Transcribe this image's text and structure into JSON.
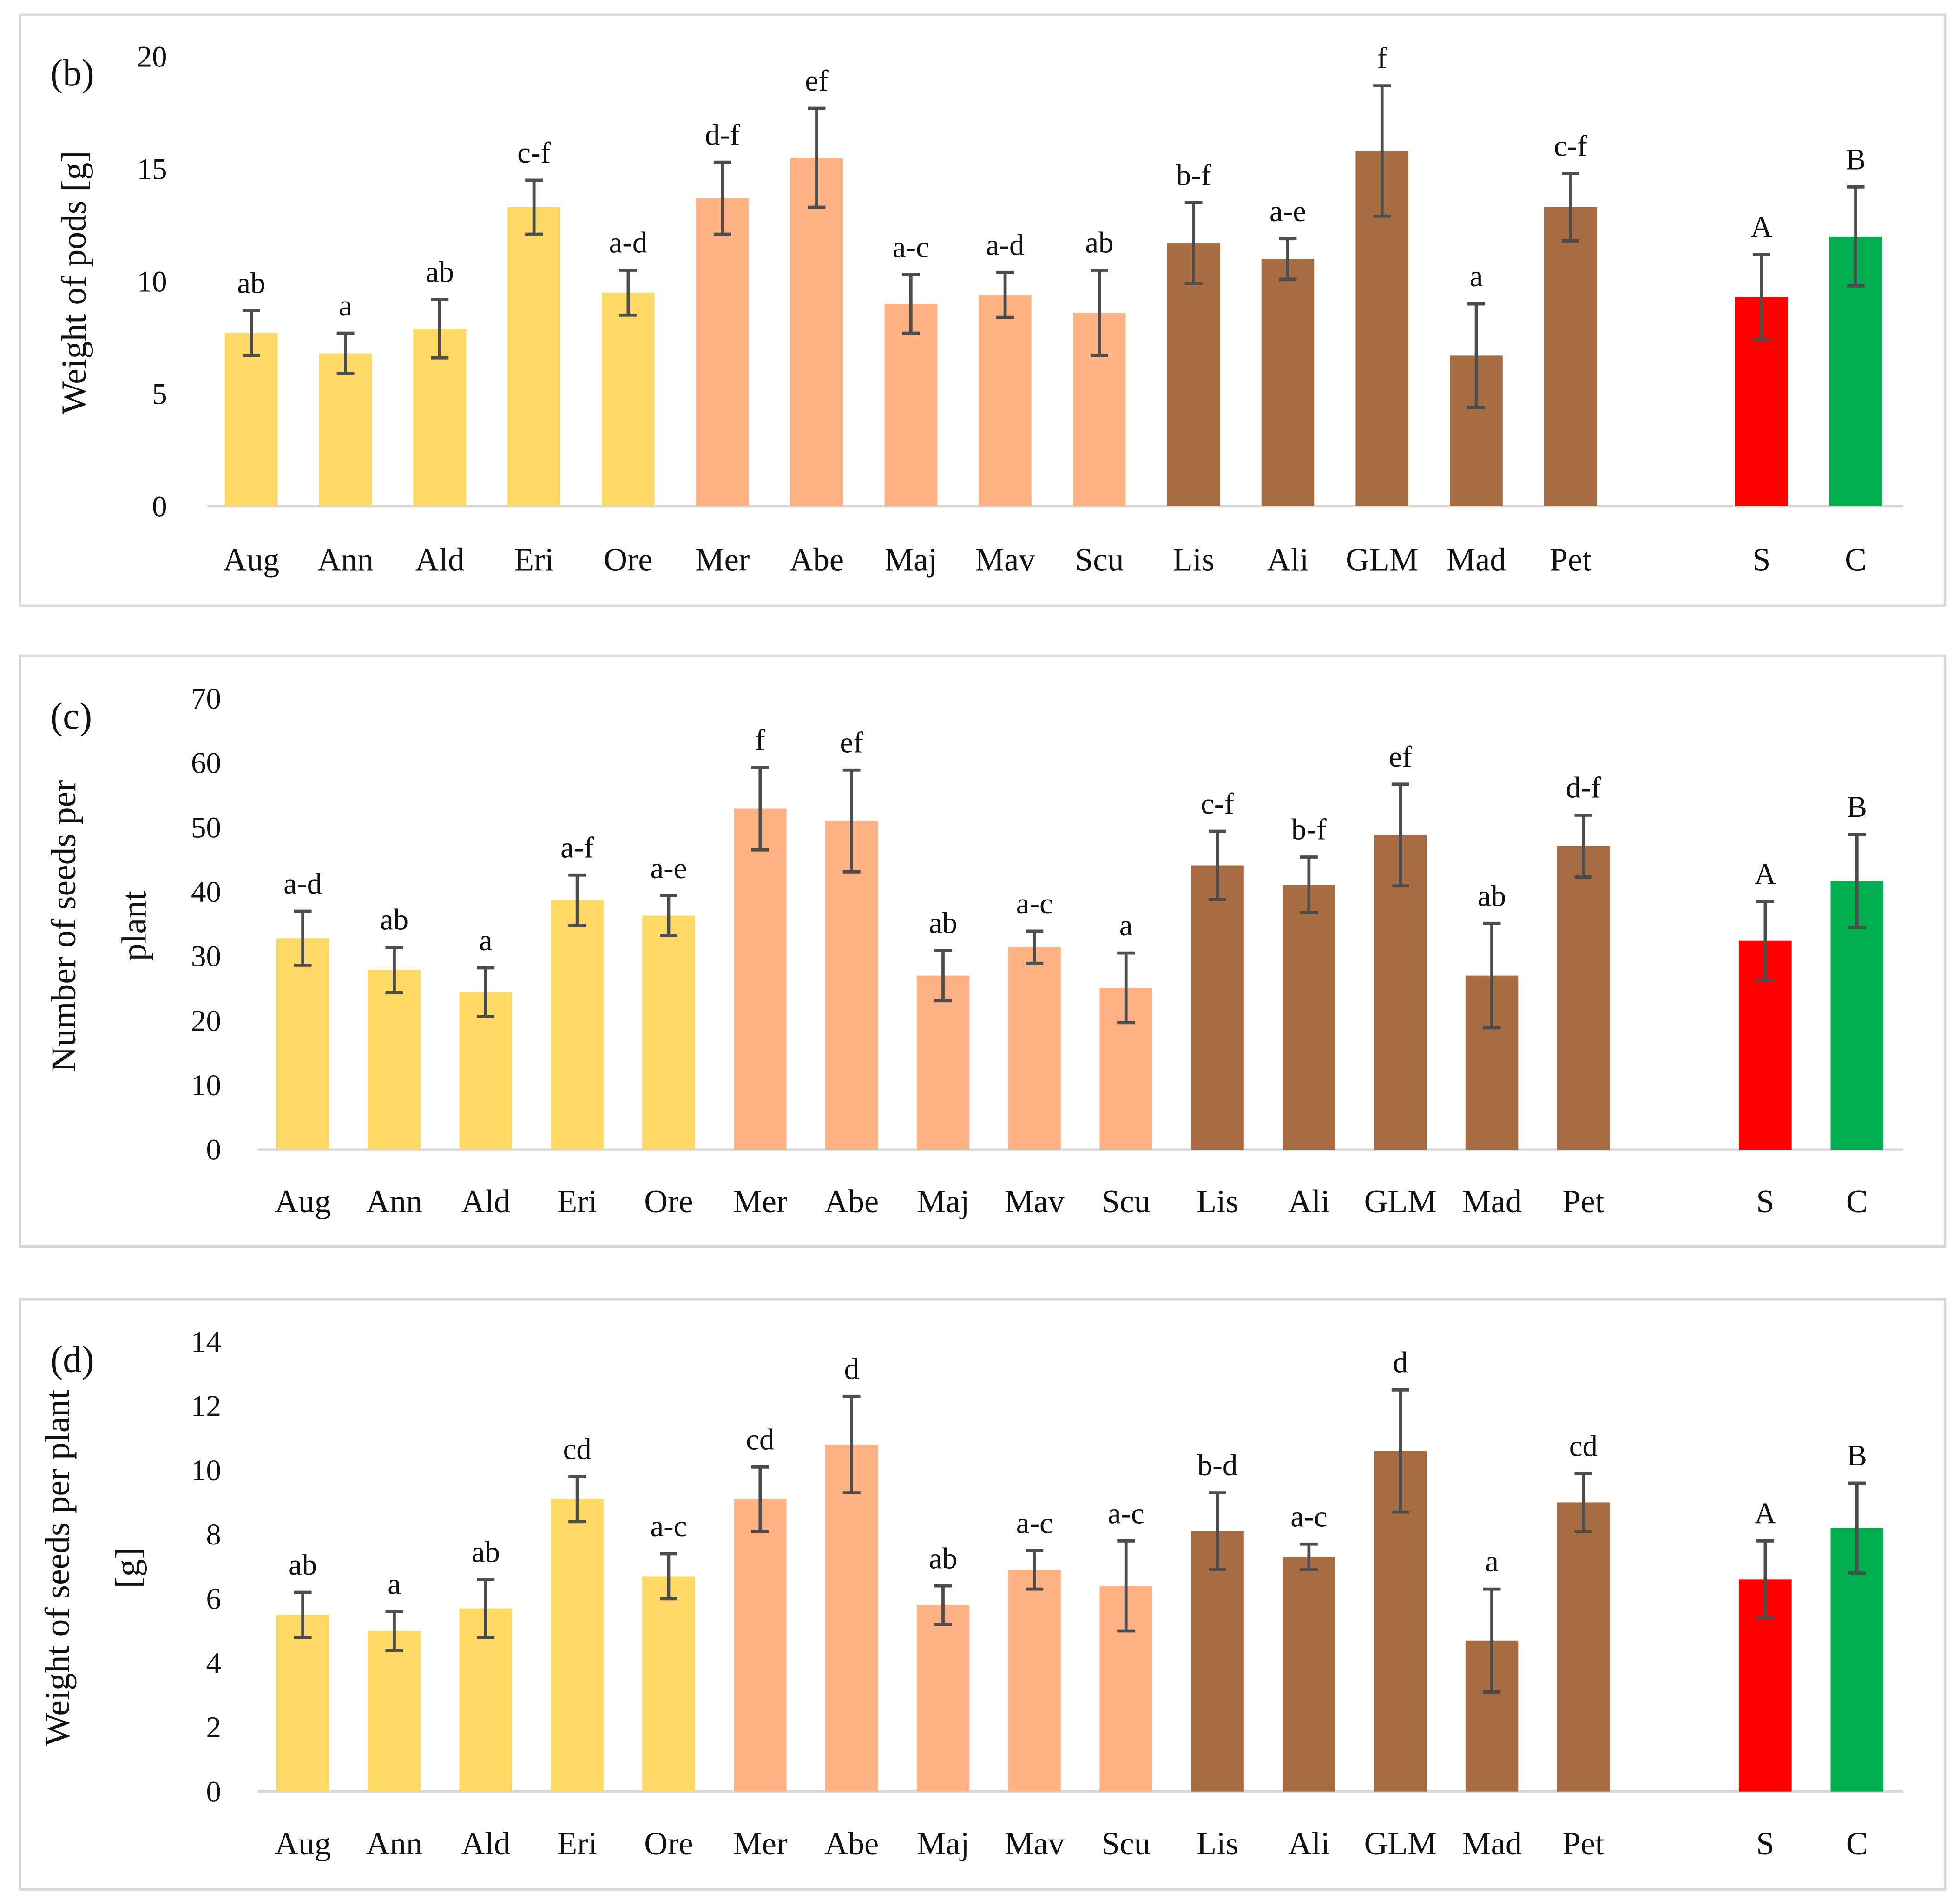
{
  "colors": {
    "group1": "#FFD966",
    "group2": "#FFB284",
    "group3": "#A86C43",
    "S": "#FF0000",
    "C": "#00B050",
    "error_bar": "#4d4d4d",
    "axis": "#d9d9d9",
    "frame": "#d9d9d9"
  },
  "chart_data": [
    {
      "type": "bar",
      "panel_label": "(b)",
      "ylabel": "Weight of pods [g]",
      "ylim": [
        0,
        20
      ],
      "yticks": [
        0,
        5,
        10,
        15,
        20
      ],
      "categories": [
        "Aug",
        "Ann",
        "Ald",
        "Eri",
        "Ore",
        "Mer",
        "Abe",
        "Maj",
        "Mav",
        "Scu",
        "Lis",
        "Ali",
        "GLM",
        "Mad",
        "Pet",
        "S",
        "C"
      ],
      "color_groups": [
        "group1",
        "group1",
        "group1",
        "group1",
        "group1",
        "group2",
        "group2",
        "group2",
        "group2",
        "group2",
        "group3",
        "group3",
        "group3",
        "group3",
        "group3",
        "S",
        "C"
      ],
      "values": [
        7.7,
        6.8,
        7.9,
        13.3,
        9.5,
        13.7,
        15.5,
        9.0,
        9.4,
        8.6,
        11.7,
        11.0,
        15.8,
        6.7,
        13.3,
        9.3,
        12.0
      ],
      "errors": [
        1.0,
        0.9,
        1.3,
        1.2,
        1.0,
        1.6,
        2.2,
        1.3,
        1.0,
        1.9,
        1.8,
        0.9,
        2.9,
        2.3,
        1.5,
        1.9,
        2.2
      ],
      "letters": [
        "ab",
        "a",
        "ab",
        "c-f",
        "a-d",
        "d-f",
        "ef",
        "a-c",
        "a-d",
        "ab",
        "b-f",
        "a-e",
        "f",
        "a",
        "c-f",
        "A",
        "B"
      ]
    },
    {
      "type": "bar",
      "panel_label": "(c)",
      "ylabel": "Number of seeds per plant",
      "ylim": [
        0,
        70
      ],
      "yticks": [
        0,
        10,
        20,
        30,
        40,
        50,
        60,
        70
      ],
      "categories": [
        "Aug",
        "Ann",
        "Ald",
        "Eri",
        "Ore",
        "Mer",
        "Abe",
        "Maj",
        "Mav",
        "Scu",
        "Lis",
        "Ali",
        "GLM",
        "Mad",
        "Pet",
        "S",
        "C"
      ],
      "color_groups": [
        "group1",
        "group1",
        "group1",
        "group1",
        "group1",
        "group2",
        "group2",
        "group2",
        "group2",
        "group2",
        "group3",
        "group3",
        "group3",
        "group3",
        "group3",
        "S",
        "C"
      ],
      "values": [
        32.8,
        27.9,
        24.4,
        38.7,
        36.3,
        52.9,
        51.0,
        27.0,
        31.4,
        25.1,
        44.1,
        41.1,
        48.8,
        27.0,
        47.1,
        32.4,
        41.7
      ],
      "errors": [
        4.2,
        3.5,
        3.8,
        3.9,
        3.1,
        6.4,
        7.9,
        3.9,
        2.5,
        5.4,
        5.3,
        4.3,
        7.9,
        8.1,
        4.8,
        6.1,
        7.2
      ],
      "letters": [
        "a-d",
        "ab",
        "a",
        "a-f",
        "a-e",
        "f",
        "ef",
        "ab",
        "a-c",
        "a",
        "c-f",
        "b-f",
        "ef",
        "ab",
        "d-f",
        "A",
        "B"
      ]
    },
    {
      "type": "bar",
      "panel_label": "(d)",
      "ylabel": "Weight of seeds per plant [g]",
      "ylim": [
        0,
        14
      ],
      "yticks": [
        0,
        2,
        4,
        6,
        8,
        10,
        12,
        14
      ],
      "categories": [
        "Aug",
        "Ann",
        "Ald",
        "Eri",
        "Ore",
        "Mer",
        "Abe",
        "Maj",
        "Mav",
        "Scu",
        "Lis",
        "Ali",
        "GLM",
        "Mad",
        "Pet",
        "S",
        "C"
      ],
      "color_groups": [
        "group1",
        "group1",
        "group1",
        "group1",
        "group1",
        "group2",
        "group2",
        "group2",
        "group2",
        "group2",
        "group3",
        "group3",
        "group3",
        "group3",
        "group3",
        "S",
        "C"
      ],
      "values": [
        5.5,
        5.0,
        5.7,
        9.1,
        6.7,
        9.1,
        10.8,
        5.8,
        6.9,
        6.4,
        8.1,
        7.3,
        10.6,
        4.7,
        9.0,
        6.6,
        8.2
      ],
      "errors": [
        0.7,
        0.6,
        0.9,
        0.7,
        0.7,
        1.0,
        1.5,
        0.6,
        0.6,
        1.4,
        1.2,
        0.4,
        1.9,
        1.6,
        0.9,
        1.2,
        1.4
      ],
      "letters": [
        "ab",
        "a",
        "ab",
        "cd",
        "a-c",
        "cd",
        "d",
        "ab",
        "a-c",
        "a-c",
        "b-d",
        "a-c",
        "d",
        "a",
        "cd",
        "A",
        "B"
      ]
    }
  ]
}
